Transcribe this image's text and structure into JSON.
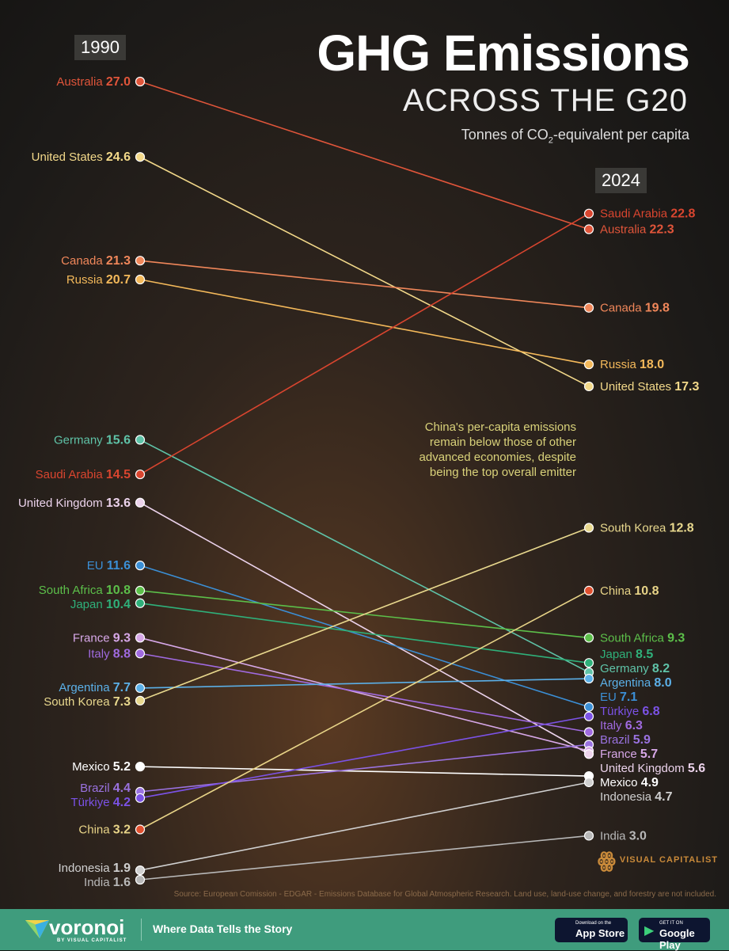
{
  "header": {
    "title": "GHG Emissions",
    "subtitle": "ACROSS THE G20",
    "unit_prefix": "Tonnes of CO",
    "unit_sub": "2",
    "unit_suffix": "-equivalent per capita"
  },
  "annotation": "China's per-capita emissions remain below those of other advanced economies, despite being the top overall emitter",
  "source": "Source: European Comission - EDGAR - Emissions Database for Global Atmospheric Research. Land use, land-use change, and forestry are not included.",
  "branding": {
    "watermark": "VISUAL CAPITALIST",
    "logo": "voronoi",
    "logo_sub": "BY VISUAL CAPITALIST",
    "tagline": "Where Data Tells the Story",
    "app_store_small": "Download on the",
    "app_store": "App Store",
    "google_small": "GET IT ON",
    "google": "Google Play"
  },
  "chart_data": {
    "type": "slope",
    "title": "GHG Emissions ACROSS THE G20",
    "ylabel": "Tonnes of CO2-equivalent per capita",
    "categories": [
      "1990",
      "2024"
    ],
    "ylim": [
      1.6,
      27.0
    ],
    "series": [
      {
        "name": "Australia",
        "values": [
          27.0,
          22.3
        ],
        "color": "#e0553a"
      },
      {
        "name": "United States",
        "values": [
          24.6,
          17.3
        ],
        "color": "#f3d98a"
      },
      {
        "name": "Canada",
        "values": [
          21.3,
          19.8
        ],
        "color": "#f0875a"
      },
      {
        "name": "Russia",
        "values": [
          20.7,
          18.0
        ],
        "color": "#f4b95a"
      },
      {
        "name": "Germany",
        "values": [
          15.6,
          8.2
        ],
        "color": "#5fc3a8"
      },
      {
        "name": "Saudi Arabia",
        "values": [
          14.5,
          22.8
        ],
        "color": "#d9452f"
      },
      {
        "name": "United Kingdom",
        "values": [
          13.6,
          5.6
        ],
        "color": "#ecd3ec"
      },
      {
        "name": "EU",
        "values": [
          11.6,
          7.1
        ],
        "color": "#3b8fd6"
      },
      {
        "name": "South Africa",
        "values": [
          10.8,
          9.3
        ],
        "color": "#5cbf4a"
      },
      {
        "name": "Japan",
        "values": [
          10.4,
          8.5
        ],
        "color": "#2fb07a"
      },
      {
        "name": "France",
        "values": [
          9.3,
          5.7
        ],
        "color": "#d7a8e8"
      },
      {
        "name": "Italy",
        "values": [
          8.8,
          6.3
        ],
        "color": "#a06ae0"
      },
      {
        "name": "Argentina",
        "values": [
          7.7,
          8.0
        ],
        "color": "#5bb0e8"
      },
      {
        "name": "South Korea",
        "values": [
          7.3,
          12.8
        ],
        "color": "#e8d88e"
      },
      {
        "name": "Mexico",
        "values": [
          5.2,
          4.9
        ],
        "color": "#ffffff"
      },
      {
        "name": "Brazil",
        "values": [
          4.4,
          5.9
        ],
        "color": "#9a72e0"
      },
      {
        "name": "Türkiye",
        "values": [
          4.2,
          6.8
        ],
        "color": "#7b52e6"
      },
      {
        "name": "China",
        "values": [
          3.2,
          10.8
        ],
        "color": "#e8d488",
        "dot": "#e0502f"
      },
      {
        "name": "Indonesia",
        "values": [
          1.9,
          4.7
        ],
        "color": "#d0d0d0"
      },
      {
        "name": "India",
        "values": [
          1.6,
          3.0
        ],
        "color": "#b8b8b8"
      }
    ]
  }
}
